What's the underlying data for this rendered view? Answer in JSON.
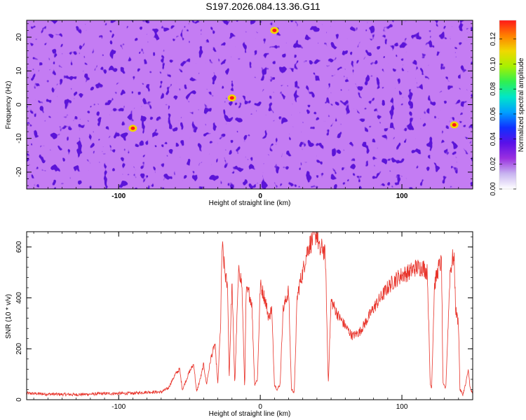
{
  "title": "S197.2026.084.13.36.G11",
  "chart_data": [
    {
      "type": "heatmap",
      "xlabel": "Height of straight line (km)",
      "ylabel": "Frequency (Hz)",
      "xlim": [
        -165,
        150
      ],
      "ylim": [
        -25,
        25
      ],
      "xticks": [
        -100,
        0,
        100
      ],
      "yticks": [
        -20,
        -10,
        0,
        10,
        20
      ],
      "colorbar": {
        "label": "Normalized spectral amplitude",
        "range": [
          0,
          0.135
        ],
        "ticks": [
          0.0,
          0.02,
          0.04,
          0.06,
          0.08,
          0.1,
          0.12
        ],
        "tick_labels": [
          "0.00",
          "0.02",
          "0.04",
          "0.06",
          "0.08",
          "0.10",
          "0.12"
        ],
        "colors": [
          "#ffffff",
          "#c8b4f0",
          "#9a30e0",
          "#5a10e8",
          "#1030ff",
          "#00a0ff",
          "#00e6c8",
          "#30f050",
          "#a8f000",
          "#f0d800",
          "#ff8000",
          "#ff1818"
        ]
      },
      "notable_peaks": [
        {
          "x": -20,
          "y": 2,
          "value": 0.13
        },
        {
          "x": 137,
          "y": -6,
          "value": 0.12
        },
        {
          "x": -90,
          "y": -7,
          "value": 0.11
        },
        {
          "x": 10,
          "y": 22,
          "value": 0.09
        }
      ]
    },
    {
      "type": "line",
      "xlabel": "Height of straight line (km)",
      "ylabel": "SNR (10 * v/v)",
      "xlim": [
        -165,
        150
      ],
      "ylim": [
        0,
        660
      ],
      "xticks": [
        -100,
        0,
        100
      ],
      "yticks": [
        0,
        200,
        400,
        600
      ],
      "line_color": "#e8332a",
      "series": [
        {
          "name": "SNR",
          "x": [
            -165,
            -150,
            -130,
            -110,
            -90,
            -80,
            -70,
            -65,
            -60,
            -57,
            -55,
            -50,
            -47,
            -45,
            -42,
            -40,
            -38,
            -35,
            -32,
            -30,
            -28,
            -27,
            -25,
            -23,
            -22,
            -20,
            -18,
            -16,
            -15,
            -13,
            -11,
            -10,
            -8,
            -6,
            -4,
            -2,
            0,
            2,
            4,
            6,
            8,
            10,
            12,
            14,
            16,
            18,
            20,
            22,
            24,
            26,
            28,
            30,
            32,
            34,
            36,
            38,
            40,
            42,
            44,
            46,
            48,
            50,
            55,
            60,
            65,
            70,
            75,
            80,
            85,
            90,
            95,
            100,
            105,
            110,
            115,
            118,
            120,
            121,
            123,
            126,
            128,
            129,
            131,
            134,
            136,
            137,
            138,
            140,
            141,
            143,
            145,
            147,
            148,
            150
          ],
          "y": [
            25,
            22,
            20,
            24,
            25,
            30,
            30,
            45,
            100,
            120,
            40,
            110,
            140,
            30,
            90,
            140,
            60,
            160,
            220,
            60,
            300,
            610,
            500,
            430,
            80,
            460,
            60,
            400,
            520,
            450,
            40,
            420,
            420,
            380,
            60,
            80,
            450,
            420,
            380,
            320,
            360,
            60,
            40,
            60,
            350,
            390,
            430,
            40,
            30,
            400,
            460,
            500,
            560,
            600,
            620,
            640,
            655,
            580,
            600,
            560,
            60,
            390,
            330,
            290,
            250,
            265,
            310,
            360,
            400,
            440,
            470,
            490,
            500,
            520,
            520,
            500,
            60,
            50,
            450,
            520,
            540,
            60,
            45,
            500,
            560,
            540,
            350,
            300,
            40,
            20,
            60,
            120,
            50,
            20
          ]
        }
      ]
    }
  ]
}
